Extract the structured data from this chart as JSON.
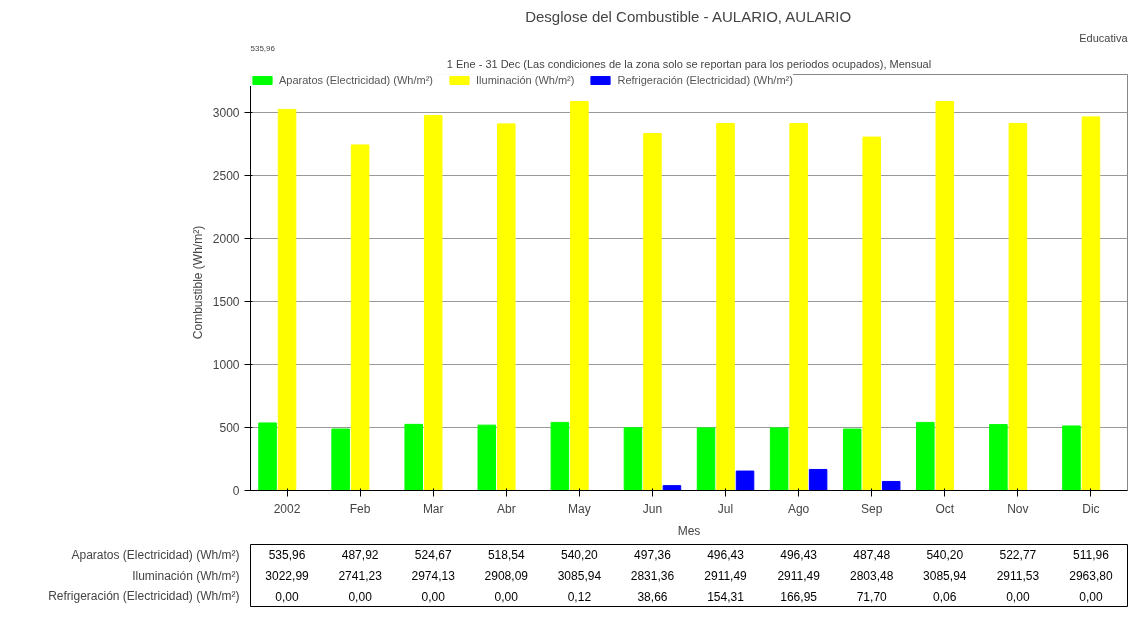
{
  "chart_data": {
    "type": "bar",
    "title": "Desglose del Combustible - AULARIO, AULARIO",
    "subtitle": "1 Ene - 31 Dec (Las condiciones de la zona solo se reportan para los periodos ocupados), Mensual",
    "annotations": [
      "535,96",
      "Educativa"
    ],
    "xlabel": "Mes",
    "ylabel": "Combustible (Wh/m²)",
    "categories": [
      "2002",
      "Feb",
      "Mar",
      "Abr",
      "May",
      "Jun",
      "Jul",
      "Ago",
      "Sep",
      "Oct",
      "Nov",
      "Dic"
    ],
    "series": [
      {
        "name": "Aparatos (Electricidad) (Wh/m²)",
        "color": "#00ff00",
        "values": [
          535.96,
          487.92,
          524.67,
          518.54,
          540.2,
          497.36,
          496.43,
          496.43,
          487.48,
          540.2,
          522.77,
          511.96
        ],
        "value_labels": [
          "535,96",
          "487,92",
          "524,67",
          "518,54",
          "540,20",
          "497,36",
          "496,43",
          "496,43",
          "487,48",
          "540,20",
          "522,77",
          "511,96"
        ]
      },
      {
        "name": "Iluminación (Wh/m²)",
        "color": "#ffff00",
        "values": [
          3022.99,
          2741.23,
          2974.13,
          2908.09,
          3085.94,
          2831.36,
          2911.49,
          2911.49,
          2803.48,
          3085.94,
          2911.53,
          2963.8
        ],
        "value_labels": [
          "3022,99",
          "2741,23",
          "2974,13",
          "2908,09",
          "3085,94",
          "2831,36",
          "2911,49",
          "2911,49",
          "2803,48",
          "3085,94",
          "2911,53",
          "2963,80"
        ]
      },
      {
        "name": "Refrigeración (Electricidad) (Wh/m²)",
        "color": "#0000ff",
        "values": [
          0.0,
          0.0,
          0.0,
          0.0,
          0.12,
          38.66,
          154.31,
          166.95,
          71.7,
          0.06,
          0.0,
          0.0
        ],
        "value_labels": [
          "0,00",
          "0,00",
          "0,00",
          "0,00",
          "0,12",
          "38,66",
          "154,31",
          "166,95",
          "71,70",
          "0,06",
          "0,00",
          "0,00"
        ]
      }
    ],
    "ylim": [
      0,
      3300
    ],
    "yticks": [
      0,
      500,
      1000,
      1500,
      2000,
      2500,
      3000
    ],
    "grid": "y",
    "legend": "top"
  }
}
